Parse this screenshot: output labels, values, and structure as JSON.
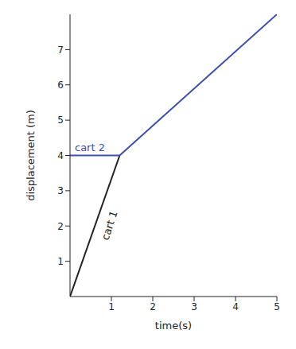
{
  "chart_data": {
    "type": "line",
    "x_label": "time(s)",
    "y_label": "displacement (m)",
    "series": [
      {
        "name": "cart 1",
        "color": "#222222",
        "x": [
          0,
          1.2
        ],
        "values": [
          0,
          4
        ]
      },
      {
        "name": "cart 2",
        "color": "#3a4fb0",
        "x": [
          0,
          1.2,
          5
        ],
        "values": [
          4,
          4,
          8
        ]
      }
    ],
    "xlim": [
      0,
      5
    ],
    "ylim": [
      0,
      8
    ],
    "xticks": [
      1,
      2,
      3,
      4,
      5
    ],
    "yticks": [
      1,
      2,
      3,
      4,
      5,
      6,
      7
    ],
    "grid": false
  }
}
